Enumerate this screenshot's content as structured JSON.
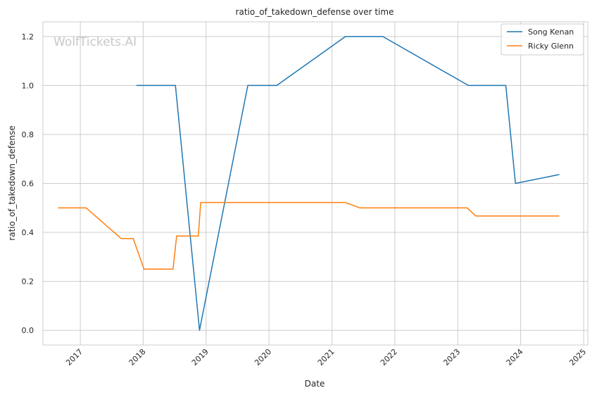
{
  "chart_data": {
    "type": "line",
    "title": "ratio_of_takedown_defense over time",
    "xlabel": "Date",
    "ylabel": "ratio_of_takedown_defense",
    "watermark": "WolfTickets.AI",
    "xlim": [
      "2016-05-29",
      "2025-01-25"
    ],
    "ylim": [
      -0.06,
      1.26
    ],
    "x_ticks": [
      "2017-01-01",
      "2018-01-01",
      "2019-01-01",
      "2020-01-01",
      "2021-01-01",
      "2022-01-01",
      "2023-01-01",
      "2024-01-01",
      "2025-01-01"
    ],
    "x_tick_labels": [
      "2017",
      "2018",
      "2019",
      "2020",
      "2021",
      "2022",
      "2023",
      "2024",
      "2025"
    ],
    "y_ticks": [
      0.0,
      0.2,
      0.4,
      0.6,
      0.8,
      1.0,
      1.2
    ],
    "y_tick_labels": [
      "0.0",
      "0.2",
      "0.4",
      "0.6",
      "0.8",
      "1.0",
      "1.2"
    ],
    "grid": true,
    "legend_position": "top-right",
    "series": [
      {
        "name": "Song Kenan",
        "color": "#1f77b4",
        "points": [
          {
            "x": "2017-11-25",
            "y": 1.0
          },
          {
            "x": "2018-07-07",
            "y": 1.0
          },
          {
            "x": "2018-11-24",
            "y": 0.0
          },
          {
            "x": "2019-08-31",
            "y": 1.0
          },
          {
            "x": "2020-02-15",
            "y": 1.0
          },
          {
            "x": "2021-03-20",
            "y": 1.2
          },
          {
            "x": "2021-10-23",
            "y": 1.2
          },
          {
            "x": "2023-03-04",
            "y": 1.0
          },
          {
            "x": "2023-10-07",
            "y": 1.0
          },
          {
            "x": "2023-12-02",
            "y": 0.6
          },
          {
            "x": "2024-08-10",
            "y": 0.636
          }
        ]
      },
      {
        "name": "Ricky Glenn",
        "color": "#ff7f0e",
        "points": [
          {
            "x": "2016-08-27",
            "y": 0.5
          },
          {
            "x": "2017-02-04",
            "y": 0.5
          },
          {
            "x": "2017-08-26",
            "y": 0.375
          },
          {
            "x": "2017-11-04",
            "y": 0.375
          },
          {
            "x": "2018-01-06",
            "y": 0.25
          },
          {
            "x": "2018-06-23",
            "y": 0.25
          },
          {
            "x": "2018-07-14",
            "y": 0.385
          },
          {
            "x": "2018-11-17",
            "y": 0.385
          },
          {
            "x": "2018-12-01",
            "y": 0.522
          },
          {
            "x": "2021-03-20",
            "y": 0.522
          },
          {
            "x": "2021-06-12",
            "y": 0.5
          },
          {
            "x": "2023-02-25",
            "y": 0.5
          },
          {
            "x": "2023-04-15",
            "y": 0.467
          },
          {
            "x": "2024-08-10",
            "y": 0.467
          }
        ]
      }
    ]
  }
}
